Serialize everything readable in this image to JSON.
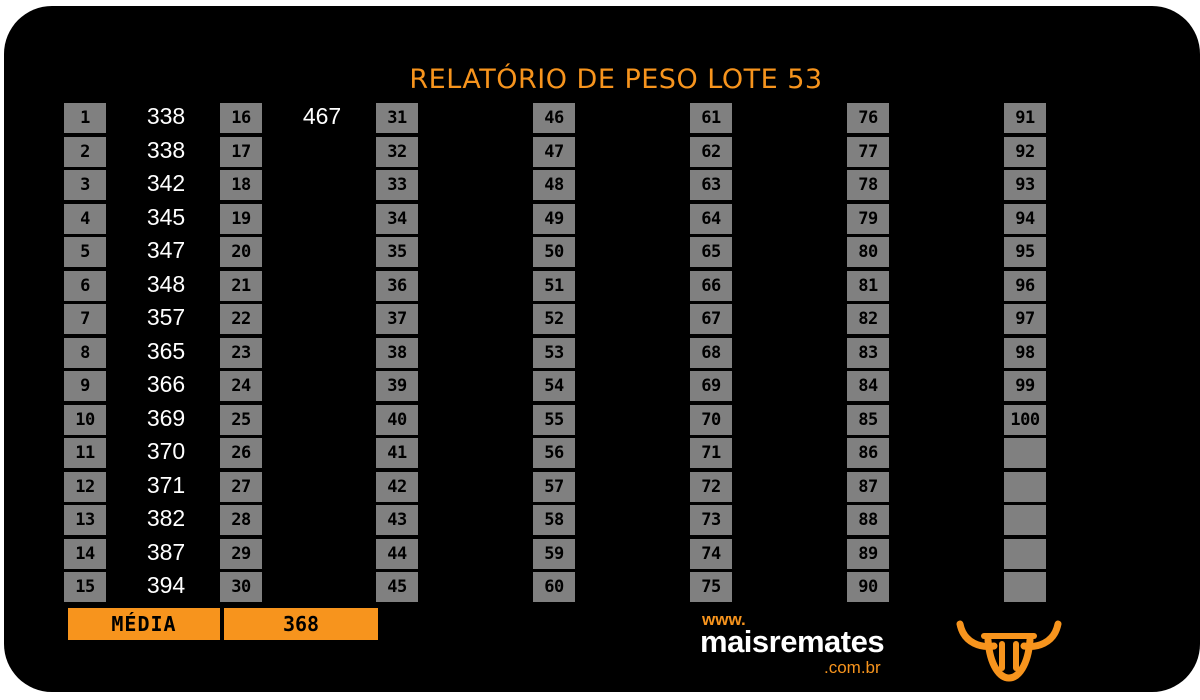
{
  "title": "RELATÓRIO DE PESO LOTE 53",
  "columns": [
    {
      "lots": [
        "1",
        "2",
        "3",
        "4",
        "5",
        "6",
        "7",
        "8",
        "9",
        "10",
        "11",
        "12",
        "13",
        "14",
        "15"
      ],
      "weights": [
        "338",
        "338",
        "342",
        "345",
        "347",
        "348",
        "357",
        "365",
        "366",
        "369",
        "370",
        "371",
        "382",
        "387",
        "394"
      ]
    },
    {
      "lots": [
        "16",
        "17",
        "18",
        "19",
        "20",
        "21",
        "22",
        "23",
        "24",
        "25",
        "26",
        "27",
        "28",
        "29",
        "30"
      ],
      "weights": [
        "467",
        "",
        "",
        "",
        "",
        "",
        "",
        "",
        "",
        "",
        "",
        "",
        "",
        "",
        ""
      ]
    },
    {
      "lots": [
        "31",
        "32",
        "33",
        "34",
        "35",
        "36",
        "37",
        "38",
        "39",
        "40",
        "41",
        "42",
        "43",
        "44",
        "45"
      ],
      "weights": [
        "",
        "",
        "",
        "",
        "",
        "",
        "",
        "",
        "",
        "",
        "",
        "",
        "",
        "",
        ""
      ]
    },
    {
      "lots": [
        "46",
        "47",
        "48",
        "49",
        "50",
        "51",
        "52",
        "53",
        "54",
        "55",
        "56",
        "57",
        "58",
        "59",
        "60"
      ],
      "weights": [
        "",
        "",
        "",
        "",
        "",
        "",
        "",
        "",
        "",
        "",
        "",
        "",
        "",
        "",
        ""
      ]
    },
    {
      "lots": [
        "61",
        "62",
        "63",
        "64",
        "65",
        "66",
        "67",
        "68",
        "69",
        "70",
        "71",
        "72",
        "73",
        "74",
        "75"
      ],
      "weights": [
        "",
        "",
        "",
        "",
        "",
        "",
        "",
        "",
        "",
        "",
        "",
        "",
        "",
        "",
        ""
      ]
    },
    {
      "lots": [
        "76",
        "77",
        "78",
        "79",
        "80",
        "81",
        "82",
        "83",
        "84",
        "85",
        "86",
        "87",
        "88",
        "89",
        "90"
      ],
      "weights": [
        "",
        "",
        "",
        "",
        "",
        "",
        "",
        "",
        "",
        "",
        "",
        "",
        "",
        "",
        ""
      ]
    },
    {
      "lots": [
        "91",
        "92",
        "93",
        "94",
        "95",
        "96",
        "97",
        "98",
        "99",
        "100",
        "",
        "",
        "",
        "",
        ""
      ],
      "weights": [
        "",
        "",
        "",
        "",
        "",
        "",
        "",
        "",
        "",
        "",
        "",
        "",
        "",
        "",
        ""
      ]
    }
  ],
  "media": {
    "label": "MÉDIA",
    "value": "368"
  },
  "brand": {
    "www": "www.",
    "name": "maisremates",
    "domain": ".com.br",
    "logo_icon": "bull-head-icon"
  },
  "colors": {
    "accent": "#f7941d",
    "box": "#808080",
    "background": "#000000",
    "text": "#ffffff"
  }
}
